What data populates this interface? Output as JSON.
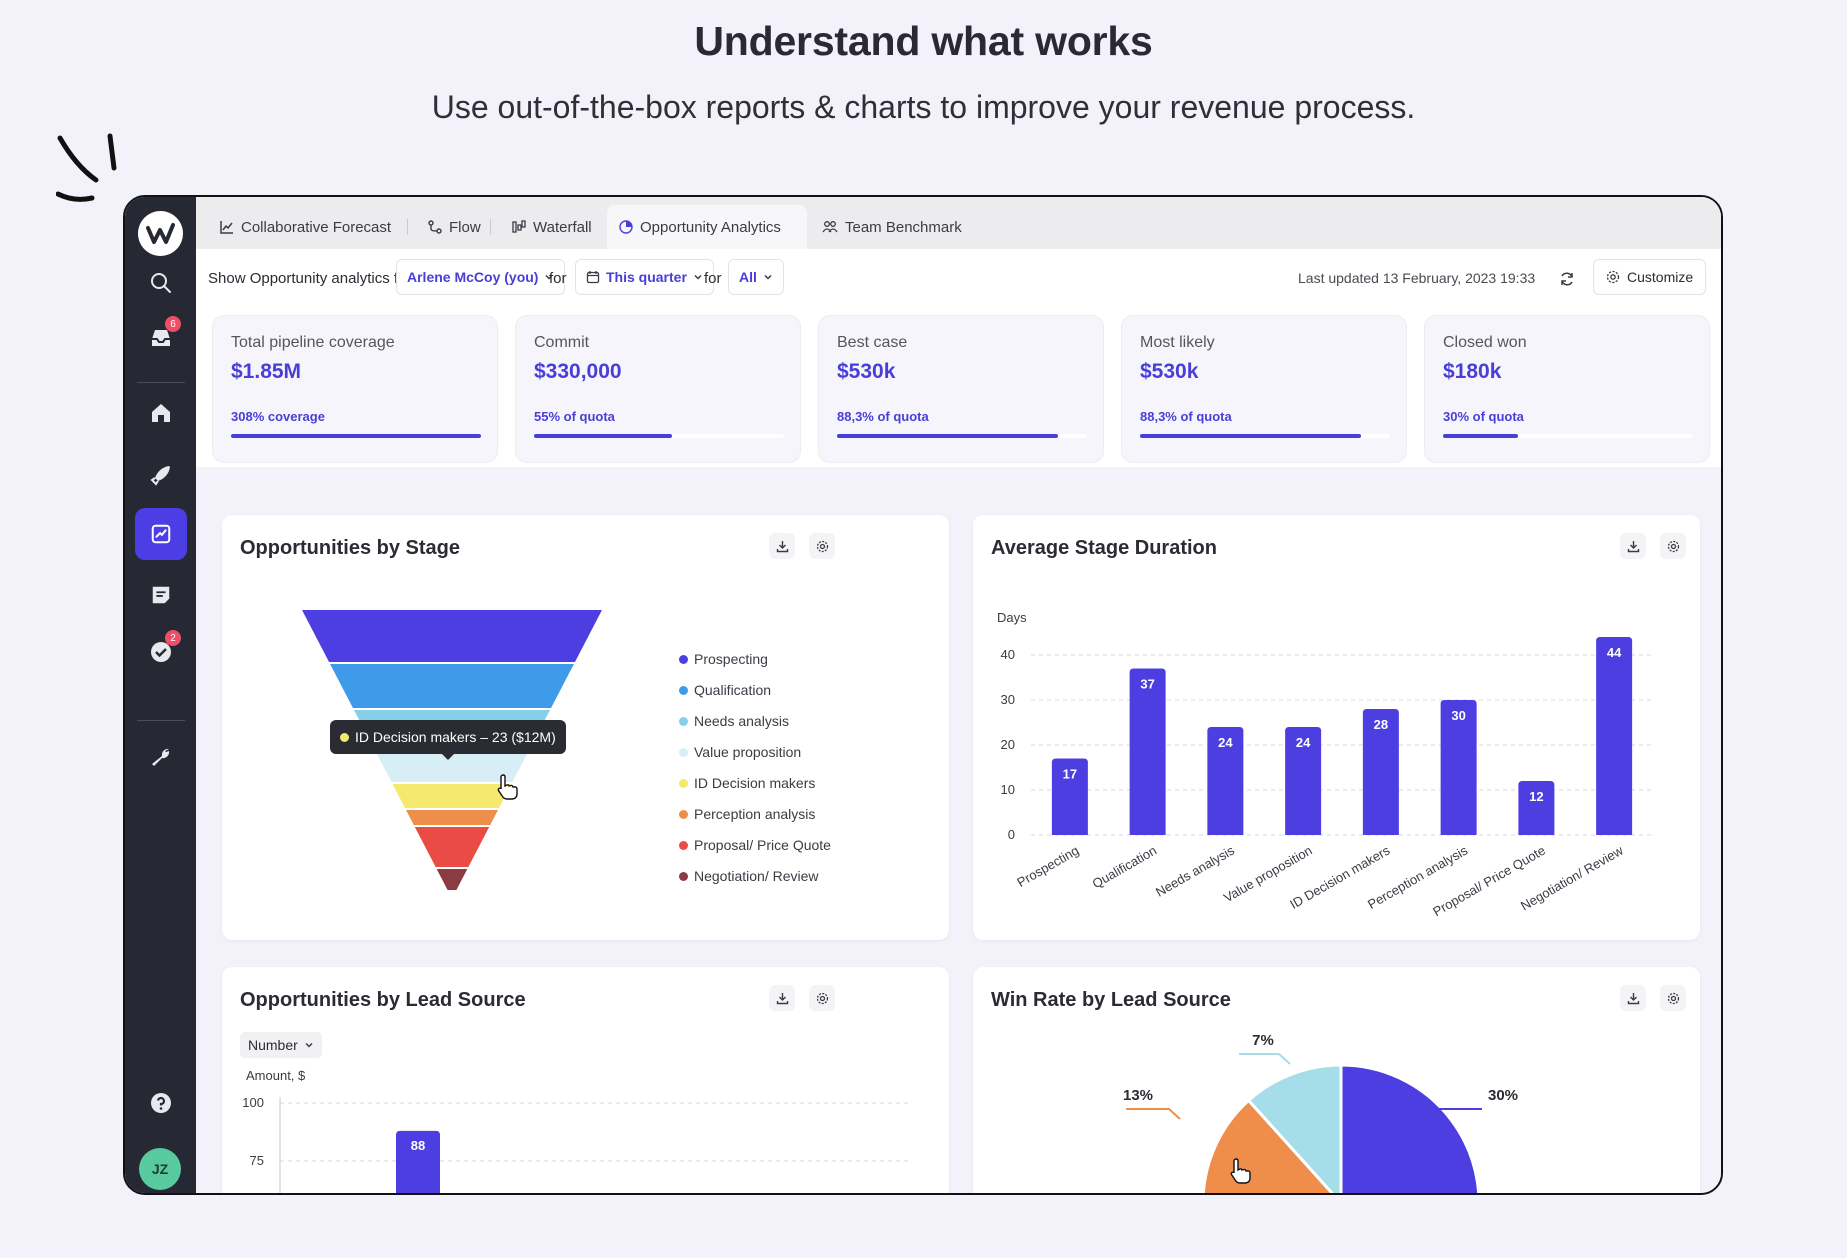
{
  "hero": {
    "title": "Understand what works",
    "subtitle": "Use out-of-the-box reports & charts to improve your revenue process."
  },
  "sidebar": {
    "items": [
      {
        "name": "search-icon",
        "badge": ""
      },
      {
        "name": "inbox-icon",
        "badge": "6"
      },
      {
        "name": "home-icon",
        "badge": ""
      },
      {
        "name": "rocket-icon",
        "badge": ""
      },
      {
        "name": "analytics-icon",
        "badge": "",
        "active": true
      },
      {
        "name": "notes-icon",
        "badge": ""
      },
      {
        "name": "tasks-icon",
        "badge": "2"
      },
      {
        "name": "wrench-icon",
        "badge": ""
      }
    ],
    "help_icon": "help-icon",
    "avatar_initials": "JZ"
  },
  "tabs": [
    {
      "label": "Collaborative Forecast",
      "icon": "line-chart-icon"
    },
    {
      "label": "Flow",
      "icon": "flow-icon"
    },
    {
      "label": "Waterfall",
      "icon": "waterfall-icon"
    },
    {
      "label": "Opportunity Analytics",
      "icon": "pie-icon",
      "active": true
    },
    {
      "label": "Team Benchmark",
      "icon": "team-icon"
    }
  ],
  "filters": {
    "show_label": "Show Opportunity analytics for",
    "person": "Arlene McCoy (you)",
    "for1": "for",
    "period": "This quarter",
    "for2": "for",
    "scope": "All",
    "updated": "Last updated 13 February, 2023 19:33",
    "customize": "Customize"
  },
  "kpis": [
    {
      "label": "Total pipeline coverage",
      "value": "$1.85M",
      "sub": "308% coverage",
      "progress": 1.0
    },
    {
      "label": "Commit",
      "value": "$330,000",
      "sub": "55% of quota",
      "progress": 0.55
    },
    {
      "label": "Best case",
      "value": "$530k",
      "sub": "88,3% of quota",
      "progress": 0.883
    },
    {
      "label": "Most likely",
      "value": "$530k",
      "sub": "88,3% of quota",
      "progress": 0.883
    },
    {
      "label": "Closed won",
      "value": "$180k",
      "sub": "30% of quota",
      "progress": 0.3
    }
  ],
  "cards": {
    "stage_title": "Opportunities by Stage",
    "duration_title": "Average Stage Duration",
    "lead_title": "Opportunities by Lead Source",
    "winrate_title": "Win Rate by Lead Source",
    "number_dropdown": "Number"
  },
  "colors": {
    "accent": "#4a3ed8",
    "stages": [
      "#4c3ee0",
      "#3f9ae9",
      "#86cfe8",
      "#d8eef6",
      "#f4e96e",
      "#ef8e4a",
      "#e94c44",
      "#8c3b42"
    ]
  },
  "tooltip": "ID Decision makers – 23 ($12M)",
  "chart_data": [
    {
      "type": "funnel",
      "title": "Opportunities by Stage",
      "categories": [
        "Prospecting",
        "Qualification",
        "Needs analysis",
        "Value proposition",
        "ID Decision makers",
        "Perception analysis",
        "Proposal/ Price Quote",
        "Negotiation/ Review"
      ],
      "highlight": {
        "category": "ID Decision makers",
        "value": 23,
        "amount": "$12M"
      }
    },
    {
      "type": "bar",
      "title": "Average Stage Duration",
      "ylabel": "Days",
      "categories": [
        "Prospecting",
        "Qualification",
        "Needs analysis",
        "Value proposition",
        "ID Decision makers",
        "Perception analysis",
        "Proposal/ Price Quote",
        "Negotiation/ Review"
      ],
      "values": [
        17,
        37,
        24,
        24,
        28,
        30,
        12,
        44
      ],
      "yticks": [
        "0",
        "10",
        "20",
        "30",
        "40"
      ],
      "ylim": [
        0,
        44
      ]
    },
    {
      "type": "bar",
      "title": "Opportunities by Lead Source",
      "ylabel": "Amount, $",
      "yticks": [
        "100",
        "75"
      ],
      "values": [
        88
      ]
    },
    {
      "type": "pie",
      "title": "Win Rate by Lead Source",
      "slices": [
        {
          "label": "30%",
          "color": "#4c3ee0"
        },
        {
          "label": "13%",
          "color": "#ef8e4a"
        },
        {
          "label": "7%",
          "color": "#a5dde9"
        }
      ]
    }
  ]
}
